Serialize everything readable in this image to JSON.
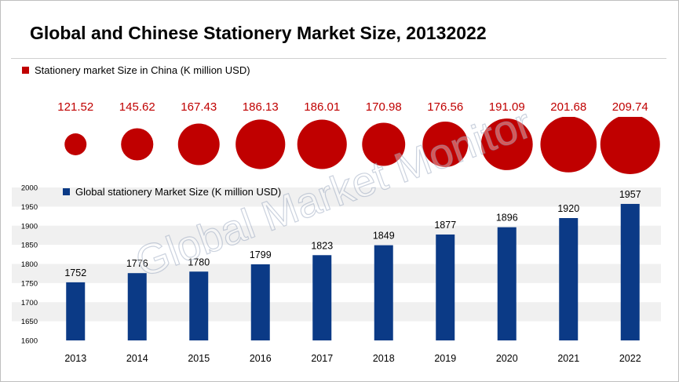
{
  "title": "Global and Chinese Stationery Market Size, 20132022",
  "watermark": "Global Market Monitor",
  "colors": {
    "china": "#c00000",
    "global": "#0b3a86",
    "band": "#f0f0f0"
  },
  "legend": {
    "china": "Stationery market Size in China (K million USD)",
    "global": "Global stationery Market Size (K million USD)"
  },
  "chart_data": [
    {
      "type": "scatter",
      "subtype": "bubble",
      "series": [
        {
          "name": "Stationery market Size in China (K million USD)",
          "x": [
            "2013",
            "2014",
            "2015",
            "2016",
            "2017",
            "2018",
            "2019",
            "2020",
            "2021",
            "2022"
          ],
          "values": [
            121.52,
            145.62,
            167.43,
            186.13,
            186.01,
            170.98,
            176.56,
            191.09,
            201.68,
            209.74
          ],
          "labels": [
            "121.52",
            "145.62",
            "167.43",
            "186.13",
            "186.01",
            "170.98",
            "176.56",
            "191.09",
            "201.68",
            "209.74"
          ]
        }
      ]
    },
    {
      "type": "bar",
      "categories": [
        "2013",
        "2014",
        "2015",
        "2016",
        "2017",
        "2018",
        "2019",
        "2020",
        "2021",
        "2022"
      ],
      "series": [
        {
          "name": "Global stationery Market Size (K million USD)",
          "values": [
            1752,
            1776,
            1780,
            1799,
            1823,
            1849,
            1877,
            1896,
            1920,
            1957
          ]
        }
      ],
      "yticks": [
        "1600",
        "1650",
        "1700",
        "1750",
        "1800",
        "1850",
        "1900",
        "1950",
        "2000"
      ],
      "ylim": [
        1600,
        2000
      ],
      "grid": "alternating bands"
    }
  ]
}
